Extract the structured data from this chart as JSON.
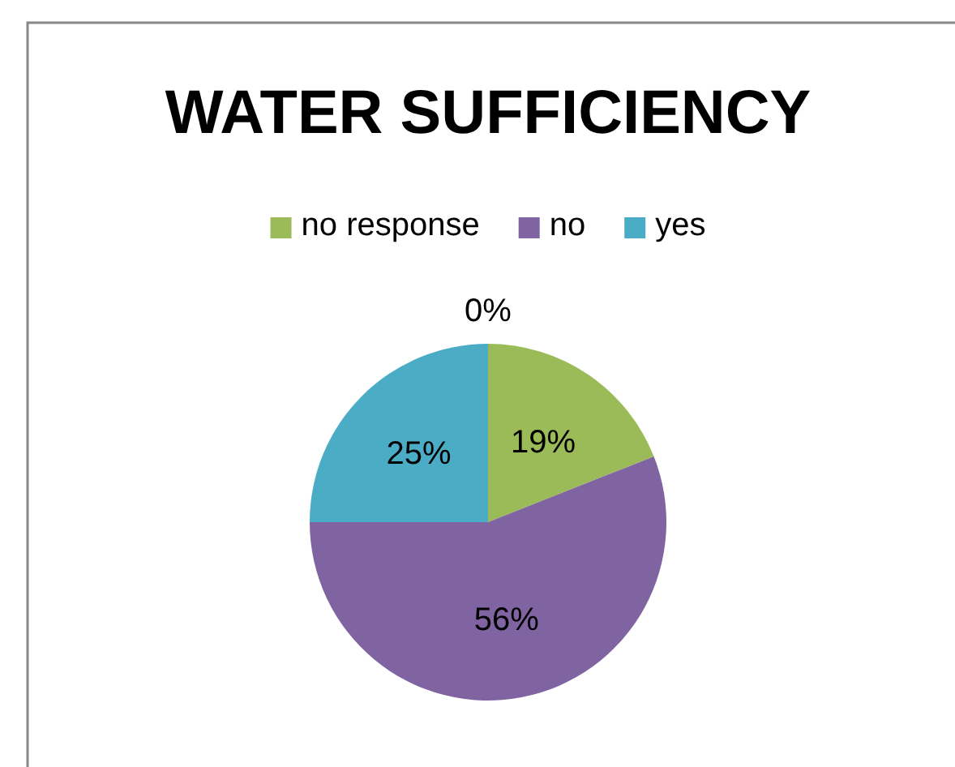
{
  "chart_data": {
    "type": "pie",
    "title": "WATER SUFFICIENCY",
    "categories": [
      "no response",
      "no",
      "yes"
    ],
    "values": [
      19,
      56,
      25
    ],
    "colors": [
      "#9bbb59",
      "#8064a2",
      "#4bacc6"
    ],
    "value_labels": [
      "19%",
      "56%",
      "25%"
    ],
    "legend": "top",
    "annotations": [
      "0%"
    ]
  }
}
